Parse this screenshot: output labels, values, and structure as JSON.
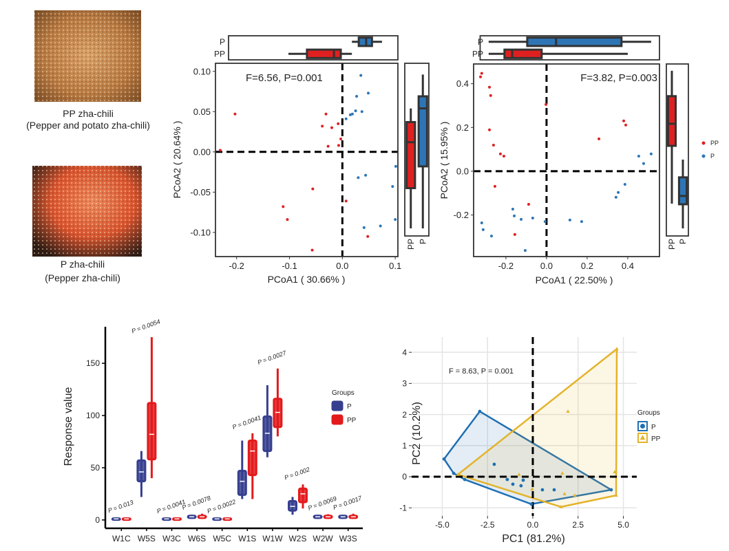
{
  "photos": [
    {
      "label": "PP zha-chili",
      "description": "(Pepper and potato zha-chili)"
    },
    {
      "label": "P zha-chili",
      "description": "(Pepper zha-chili)"
    }
  ],
  "chart_data": [
    {
      "type": "scatter",
      "annotation": "F=6.56, P=0.001",
      "xlabel": "PCoA1 ( 30.66% )",
      "ylabel": "PCoA2 ( 20.64% )",
      "xlim": [
        -0.24,
        0.105
      ],
      "xticks": [
        -0.2,
        -0.1,
        {
          "value": 0,
          "label": "0.0"
        },
        0.1
      ],
      "ylim": [
        -0.13,
        0.11
      ],
      "yticks": [
        {
          "value": -0.1,
          "label": "-0.10"
        },
        {
          "value": -0.05,
          "label": "-0.05"
        },
        {
          "value": 0,
          "label": "0.00"
        },
        {
          "value": 0.05,
          "label": "0.05"
        },
        {
          "value": 0.1,
          "label": "0.10"
        }
      ],
      "zero_lines": true,
      "series": [
        {
          "name": "PP",
          "color": "#e02020",
          "x": [
            -0.203,
            -0.231,
            -0.031,
            -0.038,
            -0.02,
            -0.008,
            -0.027,
            -0.007,
            -0.003,
            -0.056,
            -0.112,
            -0.104,
            -0.057,
            0.048,
            0.007
          ],
          "y": [
            0.047,
            0.002,
            0.047,
            0.032,
            0.03,
            0.035,
            0.007,
            0.008,
            0.016,
            -0.046,
            -0.068,
            -0.084,
            -0.122,
            -0.105,
            -0.061
          ],
          "x_box": [
            -0.102,
            -0.067,
            -0.016,
            -0.003,
            0.018
          ],
          "y_box": [
            -0.095,
            -0.045,
            0.012,
            0.037,
            0.054
          ]
        },
        {
          "name": "P",
          "color": "#2e75b6",
          "x": [
            0.035,
            0.049,
            0.027,
            0.015,
            0.025,
            0.037,
            0.019,
            0.007,
            0.101,
            0.044,
            0.03,
            0.095,
            0.1,
            0.072,
            0.041
          ],
          "y": [
            0.095,
            0.073,
            0.069,
            0.046,
            0.051,
            0.05,
            0.047,
            0.041,
            -0.018,
            -0.029,
            -0.032,
            -0.043,
            -0.084,
            -0.092,
            -0.094
          ],
          "x_box": [
            0.018,
            0.031,
            0.045,
            0.056,
            0.075
          ],
          "y_box": [
            -0.095,
            -0.018,
            0.054,
            0.069,
            0.096
          ]
        }
      ]
    },
    {
      "type": "scatter",
      "annotation": "F=3.82, P=0.003",
      "xlabel": "PCoA1 ( 22.50% )",
      "ylabel": "PCoA2 ( 15.95% )",
      "xlim": [
        -0.359,
        0.556
      ],
      "xticks": [
        -0.2,
        {
          "value": 0,
          "label": "0.0"
        },
        0.2,
        0.4
      ],
      "ylim": [
        -0.39,
        0.49
      ],
      "yticks": [
        -0.2,
        {
          "value": 0,
          "label": "0.0"
        },
        0.2,
        0.4
      ],
      "zero_lines": true,
      "legend": "right",
      "series": [
        {
          "name": "PP",
          "color": "#e02020",
          "x": [
            -0.319,
            -0.325,
            -0.281,
            -0.275,
            -0.281,
            -0.261,
            -0.227,
            -0.21,
            -0.254,
            -0.088,
            -0.156,
            -0.003,
            0.258,
            0.38,
            0.39
          ],
          "y": [
            0.447,
            0.431,
            0.384,
            0.346,
            0.189,
            0.119,
            0.079,
            0.069,
            -0.069,
            -0.151,
            -0.289,
            0.305,
            0.148,
            0.23,
            0.211
          ],
          "x_box": [
            -0.285,
            -0.207,
            -0.169,
            -0.024,
            0.4
          ],
          "y_box": [
            -0.148,
            0.116,
            0.217,
            0.343,
            0.459
          ]
        },
        {
          "name": "P",
          "color": "#2e75b6",
          "x": [
            -0.319,
            -0.312,
            -0.271,
            -0.166,
            -0.159,
            -0.125,
            -0.068,
            -0.105,
            -0.007,
            0.115,
            0.173,
            0.353,
            0.342,
            0.386,
            0.454,
            0.478,
            0.515
          ],
          "y": [
            -0.236,
            -0.267,
            -0.296,
            -0.173,
            -0.204,
            -0.22,
            -0.214,
            -0.362,
            -0.23,
            -0.223,
            -0.23,
            -0.097,
            -0.119,
            -0.06,
            0.069,
            0.035,
            0.079
          ],
          "x_box": [
            -0.285,
            -0.095,
            0.047,
            0.369,
            0.515
          ],
          "y_box": [
            -0.261,
            -0.151,
            -0.113,
            -0.028,
            0.053
          ]
        }
      ]
    },
    {
      "type": "box",
      "ylabel": "Response value",
      "categories": [
        "W1C",
        "W5S",
        "W3C",
        "W6S",
        "W5C",
        "W1S",
        "W1W",
        "W2S",
        "W2W",
        "W3S"
      ],
      "ylim": [
        -8,
        185
      ],
      "yticks": [
        0,
        50,
        100,
        150
      ],
      "legend": "right",
      "legend_title": "Groups",
      "p_labels": [
        "P = 0.013",
        "P = 0.0054",
        "P = 0.0041",
        "P = 0.0078",
        "P = 0.0022",
        "P = 0.0041",
        "P = 0.0027",
        "P = 0.002",
        "P = 0.0069",
        "P = 0.0017"
      ],
      "series": [
        {
          "name": "P",
          "color": "#363f8f",
          "boxes": [
            [
              0,
              0.5,
              1,
              1.5,
              2.5
            ],
            [
              22,
              37,
              46,
              57,
              66
            ],
            [
              0,
              0.5,
              1,
              1.5,
              2.5
            ],
            [
              1,
              2,
              3,
              4,
              5
            ],
            [
              0,
              0.5,
              1,
              1.5,
              2.5
            ],
            [
              20,
              24,
              37,
              47,
              76
            ],
            [
              60,
              66,
              83,
              99,
              129
            ],
            [
              5,
              9,
              13,
              18,
              22
            ],
            [
              1,
              2,
              3,
              4,
              5
            ],
            [
              1,
              2,
              3,
              4,
              5
            ]
          ]
        },
        {
          "name": "PP",
          "color": "#e31a1c",
          "boxes": [
            [
              0,
              0.5,
              1,
              1.5,
              2.5
            ],
            [
              40,
              58,
              82,
              112,
              175
            ],
            [
              0,
              0.5,
              1,
              1.5,
              2.5
            ],
            [
              1,
              2,
              3,
              4,
              6
            ],
            [
              0,
              0.5,
              1,
              1.5,
              2.5
            ],
            [
              20,
              43,
              66,
              76,
              83
            ],
            [
              80,
              89,
              103,
              116,
              145
            ],
            [
              11,
              17,
              25,
              30,
              34
            ],
            [
              1,
              2,
              3,
              4,
              5.5
            ],
            [
              1,
              2,
              3,
              4,
              6
            ]
          ]
        }
      ]
    },
    {
      "type": "scatter",
      "annotation": "F = 8.63, P = 0.001",
      "xlabel": "PC1 (81.2%)",
      "ylabel": "PC2 (10.2%)",
      "xlim": [
        -6.69,
        5.74
      ],
      "xticks": [
        {
          "value": -5,
          "label": "-5.0"
        },
        -2.5,
        {
          "value": 0,
          "label": "0.0"
        },
        2.5,
        {
          "value": 5,
          "label": "5.0"
        }
      ],
      "ylim": [
        -1.26,
        4.49
      ],
      "yticks": [
        -1,
        0,
        1,
        2,
        3,
        4
      ],
      "grid": true,
      "zero_lines": true,
      "hull": true,
      "legend": "right",
      "legend_title": "Groups",
      "series": [
        {
          "name": "P",
          "color": "#1f6fb2",
          "marker": "circle",
          "x": [
            -2.93,
            -4.9,
            -4.37,
            -3.76,
            -0.08,
            4.33,
            -2.13,
            -1.41,
            -1.1,
            -0.65,
            0.53,
            1.18,
            -0.53
          ],
          "y": [
            2.1,
            0.57,
            0.11,
            -0.09,
            -0.88,
            -0.42,
            0.4,
            -0.09,
            -0.24,
            -0.29,
            -0.42,
            -0.42,
            -0.11
          ]
        },
        {
          "name": "PP",
          "color": "#e3b32a",
          "marker": "triangle",
          "x": [
            4.64,
            4.6,
            1.56,
            -4.14,
            1.94,
            1.63,
            -0.76,
            4.52,
            2.32,
            1.75,
            -0.04
          ],
          "y": [
            4.11,
            -0.6,
            -0.97,
            0.07,
            2.1,
            0.11,
            0.07,
            0.15,
            -0.6,
            -0.55,
            -0.4
          ]
        }
      ]
    }
  ]
}
